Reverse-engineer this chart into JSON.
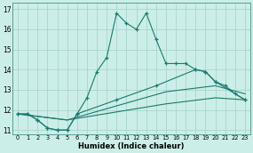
{
  "title": "",
  "xlabel": "Humidex (Indice chaleur)",
  "bg_color": "#cceee8",
  "grid_color": "#aad4ce",
  "line_color": "#1a7a6e",
  "xlim": [
    -0.5,
    23.5
  ],
  "ylim": [
    10.8,
    17.3
  ],
  "yticks": [
    11,
    12,
    13,
    14,
    15,
    16,
    17
  ],
  "xticks": [
    0,
    1,
    2,
    3,
    4,
    5,
    6,
    7,
    8,
    9,
    10,
    11,
    12,
    13,
    14,
    15,
    16,
    17,
    18,
    19,
    20,
    21,
    22,
    23
  ],
  "line1_x": [
    0,
    1,
    2,
    3,
    4,
    5,
    6,
    7,
    8,
    9,
    10,
    11,
    12,
    13,
    14,
    15,
    16,
    17,
    18,
    19,
    20,
    21,
    22,
    23
  ],
  "line1_y": [
    11.8,
    11.8,
    11.5,
    11.1,
    11.0,
    11.0,
    11.8,
    12.6,
    13.9,
    14.6,
    16.8,
    16.3,
    16.0,
    16.8,
    15.5,
    14.3,
    14.3,
    14.3,
    14.0,
    13.9,
    13.4,
    13.2,
    12.8,
    12.5
  ],
  "line2_x": [
    0,
    1,
    2,
    3,
    4,
    5,
    6,
    10,
    14,
    18,
    19,
    20,
    23
  ],
  "line2_y": [
    11.8,
    11.8,
    11.5,
    11.1,
    11.0,
    11.0,
    11.8,
    12.5,
    13.2,
    14.0,
    13.9,
    13.4,
    12.5
  ],
  "line3_x": [
    0,
    5,
    10,
    15,
    20,
    23
  ],
  "line3_y": [
    11.8,
    11.5,
    12.2,
    12.9,
    13.2,
    12.8
  ],
  "line4_x": [
    0,
    5,
    10,
    15,
    20,
    23
  ],
  "line4_y": [
    11.8,
    11.5,
    11.9,
    12.3,
    12.6,
    12.5
  ]
}
